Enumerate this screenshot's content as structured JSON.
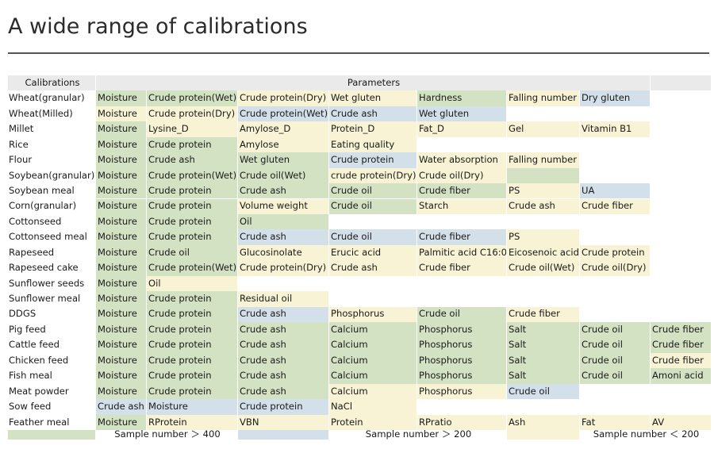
{
  "title": "A wide range of calibrations",
  "header": {
    "calibrations": "Calibrations",
    "parameters": "Parameters"
  },
  "colors": {
    "green": "#d4e2c4",
    "yellow": "#f8f3d4",
    "blue": "#d3e0e9",
    "gray": "#f1f1f1"
  },
  "rows": [
    {
      "name": "Wheat(granular)",
      "cells": [
        [
          "Moisture",
          "g"
        ],
        [
          "Crude protein(Wet)",
          "g"
        ],
        [
          "Crude protein(Dry)",
          "y"
        ],
        [
          "Wet gluten",
          "y"
        ],
        [
          "Hardness",
          "g"
        ],
        [
          "Falling number",
          "y"
        ],
        [
          "Dry gluten",
          "b"
        ],
        [
          "",
          "x"
        ]
      ]
    },
    {
      "name": "Wheat(Milled)",
      "cells": [
        [
          "Moisture",
          "y"
        ],
        [
          "Crude protein(Dry)",
          "y"
        ],
        [
          "Crude protein(Wet)",
          "b"
        ],
        [
          "Crude ash",
          "b"
        ],
        [
          "Wet gluten",
          "b"
        ],
        [
          "",
          "x"
        ],
        [
          "",
          "x"
        ],
        [
          "",
          "x"
        ]
      ]
    },
    {
      "name": "Millet",
      "cells": [
        [
          "Moisture",
          "g"
        ],
        [
          "Lysine_D",
          "y"
        ],
        [
          "Amylose_D",
          "y"
        ],
        [
          "Protein_D",
          "y"
        ],
        [
          "Fat_D",
          "y"
        ],
        [
          "Gel",
          "y"
        ],
        [
          "Vitamin B1",
          "y"
        ],
        [
          "",
          "x"
        ]
      ]
    },
    {
      "name": "Rice",
      "cells": [
        [
          "Moisture",
          "g"
        ],
        [
          "Crude protein",
          "g"
        ],
        [
          "Amylose",
          "y"
        ],
        [
          "Eating quality",
          "y"
        ],
        [
          "",
          "x"
        ],
        [
          "",
          "x"
        ],
        [
          "",
          "x"
        ],
        [
          "",
          "x"
        ]
      ]
    },
    {
      "name": "Flour",
      "cells": [
        [
          "Moisture",
          "g"
        ],
        [
          "Crude ash",
          "g"
        ],
        [
          "Wet gluten",
          "g"
        ],
        [
          "Crude protein",
          "b"
        ],
        [
          "Water absorption",
          "y"
        ],
        [
          "Falling number",
          "y"
        ],
        [
          "",
          "x"
        ],
        [
          "",
          "x"
        ]
      ]
    },
    {
      "name": "Soybean(granular)",
      "cells": [
        [
          "Moisture",
          "g"
        ],
        [
          "Crude protein(Wet)",
          "g"
        ],
        [
          "Crude oil(Wet)",
          "g"
        ],
        [
          "crude protein(Dry)",
          "y"
        ],
        [
          "Crude oil(Dry)",
          "y"
        ],
        [
          "",
          "g"
        ],
        [
          "",
          "x"
        ],
        [
          "",
          "x"
        ]
      ]
    },
    {
      "name": "Soybean meal",
      "cells": [
        [
          "Moisture",
          "g"
        ],
        [
          "Crude protein",
          "g"
        ],
        [
          "Crude ash",
          "g"
        ],
        [
          "Crude oil",
          "g"
        ],
        [
          "Crude fiber",
          "g"
        ],
        [
          "PS",
          "y"
        ],
        [
          "UA",
          "b"
        ],
        [
          "",
          "x"
        ]
      ]
    },
    {
      "name": "Corn(granular)",
      "cells": [
        [
          "Moisture",
          "g"
        ],
        [
          "Crude protein",
          "g"
        ],
        [
          "Volume weight",
          "y"
        ],
        [
          "Crude oil",
          "g"
        ],
        [
          "Starch",
          "y"
        ],
        [
          "Crude ash",
          "y"
        ],
        [
          "Crude fiber",
          "y"
        ],
        [
          "",
          "x"
        ]
      ]
    },
    {
      "name": "Cottonseed",
      "cells": [
        [
          "Moisture",
          "g"
        ],
        [
          "Crude protein",
          "g"
        ],
        [
          "Oil",
          "g"
        ],
        [
          "",
          "x"
        ],
        [
          "",
          "x"
        ],
        [
          "",
          "x"
        ],
        [
          "",
          "x"
        ],
        [
          "",
          "x"
        ]
      ]
    },
    {
      "name": "Cottonseed meal",
      "cells": [
        [
          "Moisture",
          "g"
        ],
        [
          "Crude protein",
          "g"
        ],
        [
          "Crude ash",
          "b"
        ],
        [
          "Crude oil",
          "b"
        ],
        [
          "Crude fiber",
          "b"
        ],
        [
          "PS",
          "y"
        ],
        [
          "",
          "x"
        ],
        [
          "",
          "x"
        ]
      ]
    },
    {
      "name": "Rapeseed",
      "cells": [
        [
          "Moisture",
          "g"
        ],
        [
          "Crude oil",
          "g"
        ],
        [
          "Glucosinolate",
          "y"
        ],
        [
          "Erucic acid",
          "y"
        ],
        [
          "Palmitic acid C16:0",
          "y"
        ],
        [
          "Eicosenoic acid",
          "y"
        ],
        [
          "Crude protein",
          "y"
        ],
        [
          "",
          "x"
        ]
      ]
    },
    {
      "name": "Rapeseed cake",
      "cells": [
        [
          "Moisture",
          "g"
        ],
        [
          "Crude protein(Wet)",
          "g"
        ],
        [
          "Crude protein(Dry)",
          "y"
        ],
        [
          "Crude ash",
          "y"
        ],
        [
          "Crude fiber",
          "y"
        ],
        [
          "Crude oil(Wet)",
          "y"
        ],
        [
          "Crude oil(Dry)",
          "y"
        ],
        [
          "",
          "x"
        ]
      ]
    },
    {
      "name": "Sunflower seeds",
      "cells": [
        [
          "Moisture",
          "g"
        ],
        [
          "Oil",
          "y"
        ],
        [
          "",
          "x"
        ],
        [
          "",
          "x"
        ],
        [
          "",
          "x"
        ],
        [
          "",
          "x"
        ],
        [
          "",
          "x"
        ],
        [
          "",
          "x"
        ]
      ]
    },
    {
      "name": "Sunflower meal",
      "cells": [
        [
          "Moisture",
          "g"
        ],
        [
          "Crude protein",
          "g"
        ],
        [
          "Residual oil",
          "y"
        ],
        [
          "",
          "x"
        ],
        [
          "",
          "x"
        ],
        [
          "",
          "x"
        ],
        [
          "",
          "x"
        ],
        [
          "",
          "x"
        ]
      ]
    },
    {
      "name": "DDGS",
      "cells": [
        [
          "Moisture",
          "g"
        ],
        [
          "Crude protein",
          "g"
        ],
        [
          "Crude ash",
          "b"
        ],
        [
          "Phosphorus",
          "y"
        ],
        [
          "Crude oil",
          "g"
        ],
        [
          "Crude fiber",
          "y"
        ],
        [
          "",
          "x"
        ],
        [
          "",
          "x"
        ]
      ]
    },
    {
      "name": "Pig feed",
      "cells": [
        [
          "Moisture",
          "g"
        ],
        [
          "Crude protein",
          "g"
        ],
        [
          "Crude ash",
          "g"
        ],
        [
          "Calcium",
          "g"
        ],
        [
          "Phosphorus",
          "g"
        ],
        [
          "Salt",
          "g"
        ],
        [
          "Crude oil",
          "g"
        ],
        [
          "Crude fiber",
          "g"
        ]
      ]
    },
    {
      "name": "Cattle feed",
      "cells": [
        [
          "Moisture",
          "g"
        ],
        [
          "Crude protein",
          "g"
        ],
        [
          "Crude ash",
          "g"
        ],
        [
          "Calcium",
          "g"
        ],
        [
          "Phosphorus",
          "g"
        ],
        [
          "Salt",
          "g"
        ],
        [
          "Crude oil",
          "g"
        ],
        [
          "Crude fiber",
          "g"
        ]
      ]
    },
    {
      "name": "Chicken feed",
      "cells": [
        [
          "Moisture",
          "g"
        ],
        [
          "Crude protein",
          "g"
        ],
        [
          "Crude ash",
          "g"
        ],
        [
          "Calcium",
          "g"
        ],
        [
          "Phosphorus",
          "g"
        ],
        [
          "Salt",
          "g"
        ],
        [
          "Crude oil",
          "g"
        ],
        [
          "Crude fiber",
          "y"
        ]
      ]
    },
    {
      "name": "Fish meal",
      "cells": [
        [
          "Moisture",
          "g"
        ],
        [
          "Crude protein",
          "g"
        ],
        [
          "Crude ash",
          "g"
        ],
        [
          "Calcium",
          "g"
        ],
        [
          "Phosphorus",
          "g"
        ],
        [
          "Salt",
          "g"
        ],
        [
          "Crude oil",
          "g"
        ],
        [
          "Amoni acid",
          "g"
        ]
      ]
    },
    {
      "name": "Meat powder",
      "cells": [
        [
          "Moisture",
          "g"
        ],
        [
          "Crude protein",
          "g"
        ],
        [
          "Crude ash",
          "g"
        ],
        [
          "Calcium",
          "y"
        ],
        [
          "Phosphorus",
          "y"
        ],
        [
          "Crude oil",
          "b"
        ],
        [
          "",
          "x"
        ],
        [
          "",
          "x"
        ]
      ]
    },
    {
      "name": "Sow feed",
      "cells": [
        [
          "Crude ash",
          "b"
        ],
        [
          "Moisture",
          "b"
        ],
        [
          "Crude protein",
          "b"
        ],
        [
          "NaCl",
          "y"
        ],
        [
          "",
          "x"
        ],
        [
          "",
          "x"
        ],
        [
          "",
          "x"
        ],
        [
          "",
          "x"
        ]
      ]
    },
    {
      "name": "Feather meal",
      "cells": [
        [
          "Moisture",
          "g"
        ],
        [
          "RProtein",
          "y"
        ],
        [
          "VBN",
          "y"
        ],
        [
          "Protein",
          "y"
        ],
        [
          "RPratio",
          "y"
        ],
        [
          "Ash",
          "y"
        ],
        [
          "Fat",
          "y"
        ],
        [
          "AV",
          "y"
        ]
      ]
    }
  ],
  "legend": [
    {
      "color": "g",
      "text": "Sample number ＞ 400"
    },
    {
      "color": "b",
      "text": "Sample number ＞ 200"
    },
    {
      "color": "y",
      "text": "Sample number ＜ 200"
    }
  ]
}
